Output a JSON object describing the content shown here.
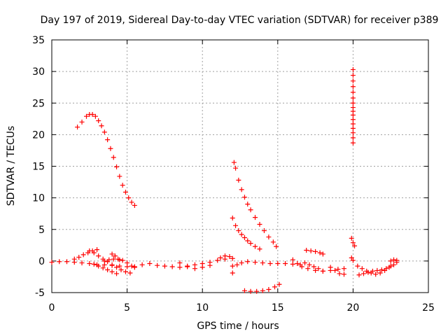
{
  "chart_data": {
    "type": "scatter",
    "title": "Day 197 of 2019, Sidereal Day-to-day VTEC variation (SDTVAR) for receiver p389",
    "xlabel": "GPS time / hours",
    "ylabel": "SDTVAR / TECUs",
    "xlim": [
      0,
      25
    ],
    "ylim": [
      -5,
      35
    ],
    "xticks": [
      0,
      5,
      10,
      15,
      20,
      25
    ],
    "yticks": [
      -5,
      0,
      5,
      10,
      15,
      20,
      25,
      30,
      35
    ],
    "grid": true,
    "marker": "+",
    "color": "#ff0000",
    "series": [
      {
        "name": "arc-morning-high",
        "x": [
          1.7,
          2.0,
          2.3,
          2.5,
          2.7,
          2.9,
          3.1,
          3.3,
          3.5,
          3.7,
          3.9,
          4.1,
          4.3,
          4.5,
          4.7,
          4.9,
          5.1,
          5.3,
          5.5
        ],
        "y": [
          21.2,
          22.0,
          22.9,
          23.2,
          23.2,
          22.9,
          22.2,
          21.4,
          20.4,
          19.2,
          17.8,
          16.4,
          14.9,
          13.4,
          12.0,
          10.9,
          10.0,
          9.3,
          8.8
        ]
      },
      {
        "name": "arc-noon-upper",
        "x": [
          12.1,
          12.2,
          12.4,
          12.6,
          12.8,
          13.0,
          13.2,
          13.5,
          13.8,
          14.1,
          14.4,
          14.7,
          14.9
        ],
        "y": [
          15.6,
          14.7,
          12.8,
          11.3,
          10.1,
          9.0,
          8.1,
          6.9,
          5.8,
          4.8,
          3.8,
          3.0,
          2.3
        ]
      },
      {
        "name": "arc-noon-lower",
        "x": [
          12.0,
          12.2,
          12.4,
          12.6,
          12.8,
          13.0,
          13.2,
          13.5,
          13.8
        ],
        "y": [
          6.8,
          5.6,
          4.8,
          4.2,
          3.7,
          3.2,
          2.8,
          2.3,
          1.9
        ]
      },
      {
        "name": "arc-low-01",
        "x": [
          0.0,
          0.5,
          1.0,
          1.5,
          2.0,
          2.5,
          3.0,
          3.5,
          4.0,
          4.5,
          5.0,
          5.5
        ],
        "y": [
          -0.2,
          -0.1,
          -0.1,
          -0.2,
          -0.3,
          -0.4,
          -0.6,
          -0.6,
          -0.7,
          -0.8,
          -0.9,
          -1.0
        ]
      },
      {
        "name": "arc-low-02",
        "x": [
          1.5,
          1.8,
          2.1,
          2.4,
          2.7,
          3.0
        ],
        "y": [
          0.3,
          0.6,
          1.0,
          1.3,
          1.6,
          1.8
        ]
      },
      {
        "name": "arc-low-03",
        "x": [
          2.5,
          2.8,
          3.1,
          3.4,
          3.7,
          4.0,
          4.3,
          4.6,
          4.9,
          5.2
        ],
        "y": [
          1.6,
          1.3,
          0.8,
          0.3,
          -0.1,
          -0.6,
          -1.0,
          -1.4,
          -1.7,
          -1.9
        ]
      },
      {
        "name": "arc-low-04",
        "x": [
          2.8,
          3.1,
          3.4,
          3.7,
          4.0,
          4.3
        ],
        "y": [
          -0.5,
          -0.8,
          -1.1,
          -1.4,
          -1.7,
          -2.0
        ]
      },
      {
        "name": "arc-low-05",
        "x": [
          3.5,
          3.8,
          4.1,
          4.4,
          4.7,
          5.0,
          5.3
        ],
        "y": [
          0.0,
          0.2,
          0.3,
          0.3,
          0.1,
          -0.3,
          -0.8
        ]
      },
      {
        "name": "arc-low-06",
        "x": [
          4.0,
          4.2,
          4.5
        ],
        "y": [
          1.1,
          0.8,
          0.2
        ]
      },
      {
        "name": "arc-low-07",
        "x": [
          5.5,
          6.0,
          6.5,
          7.0,
          7.5,
          8.0,
          8.5,
          9.0,
          9.5,
          10.0,
          10.5,
          11.0,
          11.5
        ],
        "y": [
          -0.9,
          -0.6,
          -0.4,
          -0.7,
          -0.8,
          -0.9,
          -1.0,
          -0.9,
          -0.6,
          -0.4,
          -0.2,
          0.1,
          0.3
        ]
      },
      {
        "name": "arc-low-08",
        "x": [
          8.5,
          9.0,
          9.5,
          10.0,
          10.5
        ],
        "y": [
          -0.3,
          -0.8,
          -1.2,
          -1.0,
          -0.7
        ]
      },
      {
        "name": "arc-low-09",
        "x": [
          11.2,
          11.5,
          11.8,
          12.0
        ],
        "y": [
          0.5,
          0.8,
          0.7,
          0.4
        ]
      },
      {
        "name": "arc-low-10",
        "x": [
          12.0,
          12.3,
          12.6,
          13.0,
          13.5,
          14.0,
          14.5,
          15.0,
          15.5,
          16.0,
          16.5
        ],
        "y": [
          -0.8,
          -0.6,
          -0.3,
          -0.1,
          -0.2,
          -0.3,
          -0.4,
          -0.4,
          -0.4,
          -0.5,
          -0.6
        ]
      },
      {
        "name": "arc-low-11",
        "x": [
          12.0
        ],
        "y": [
          -1.9
        ]
      },
      {
        "name": "arc-low-12",
        "x": [
          12.8,
          13.2,
          13.6,
          14.0,
          14.4,
          14.8,
          15.1
        ],
        "y": [
          -4.7,
          -4.8,
          -4.8,
          -4.7,
          -4.5,
          -4.1,
          -3.7
        ]
      },
      {
        "name": "arc-low-13",
        "x": [
          16.0,
          16.3,
          16.6,
          17.0,
          17.5,
          18.0,
          18.5,
          19.0,
          19.4
        ],
        "y": [
          0.2,
          -0.4,
          -0.9,
          -1.2,
          -1.5,
          -1.6,
          -1.5,
          -1.3,
          -1.2
        ]
      },
      {
        "name": "arc-low-14",
        "x": [
          16.8,
          17.1,
          17.4,
          17.7,
          18.0
        ],
        "y": [
          -0.3,
          -0.6,
          -0.9,
          -1.2,
          -1.6
        ]
      },
      {
        "name": "arc-low-15",
        "x": [
          16.9,
          17.2,
          17.5,
          17.8,
          18.0
        ],
        "y": [
          1.7,
          1.6,
          1.5,
          1.3,
          1.1
        ]
      },
      {
        "name": "arc-low-16",
        "x": [
          18.5,
          18.8,
          19.1,
          19.4
        ],
        "y": [
          -1.0,
          -1.5,
          -2.0,
          -2.1
        ]
      },
      {
        "name": "arc-low-17",
        "x": [
          19.9,
          20.0,
          20.1
        ],
        "y": [
          3.6,
          2.9,
          2.4
        ]
      },
      {
        "name": "arc-low-18",
        "x": [
          19.9,
          20.0
        ],
        "y": [
          0.5,
          0.1
        ]
      },
      {
        "name": "arc-low-19",
        "x": [
          20.3,
          20.6,
          20.9,
          21.2,
          21.5,
          21.8,
          22.1,
          22.4,
          22.7,
          22.9
        ],
        "y": [
          -0.8,
          -1.2,
          -1.6,
          -1.9,
          -2.1,
          -1.9,
          -1.5,
          -1.0,
          -0.6,
          -0.2
        ]
      },
      {
        "name": "arc-low-20",
        "x": [
          20.4,
          20.7,
          21.0,
          21.3,
          21.6,
          21.9,
          22.2,
          22.5
        ],
        "y": [
          -2.2,
          -2.0,
          -1.8,
          -1.6,
          -1.5,
          -1.4,
          -1.2,
          -0.8
        ]
      },
      {
        "name": "arc-low-21",
        "x": [
          22.5,
          22.7,
          22.9
        ],
        "y": [
          0.0,
          0.2,
          0.1
        ]
      },
      {
        "name": "spike-20h",
        "x": [
          20.0,
          20.0,
          20.0,
          20.0,
          20.0,
          20.0,
          20.0,
          20.0,
          20.0,
          20.0,
          20.0,
          20.0,
          20.0,
          20.0,
          20.0,
          20.0
        ],
        "y": [
          30.3,
          29.4,
          28.5,
          27.6,
          26.7,
          25.8,
          25.0,
          24.3,
          23.7,
          23.1,
          22.4,
          21.7,
          21.0,
          20.3,
          19.5,
          18.7
        ]
      }
    ]
  }
}
